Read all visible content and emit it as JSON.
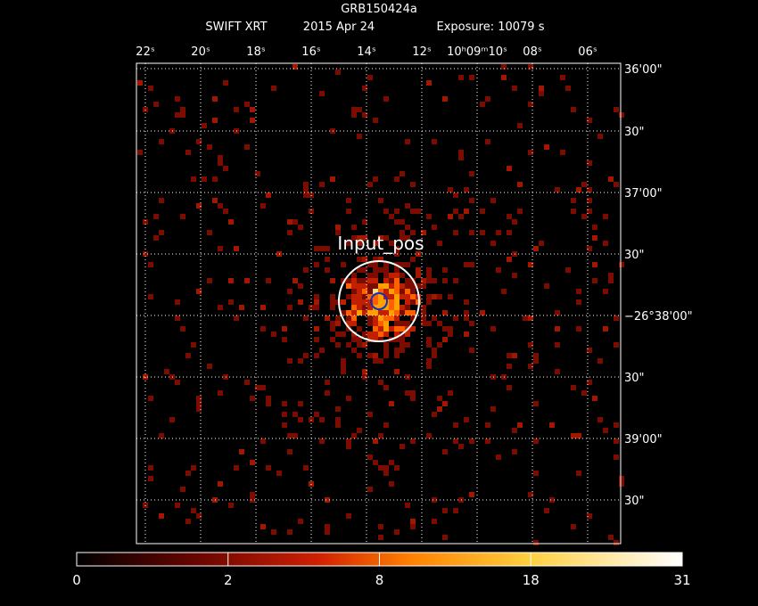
{
  "header": {
    "title": "GRB150424a",
    "instrument": "SWIFT XRT",
    "date": "2015 Apr 24",
    "exposure": "Exposure: 10079 s"
  },
  "image": {
    "top_labels": [
      "22ˢ",
      "20ˢ",
      "18ˢ",
      "16ˢ",
      "14ˢ",
      "12ˢ",
      "10ʰ09ᵐ10ˢ",
      "08ˢ",
      "06ˢ"
    ],
    "right_labels": [
      "36'00\"",
      "30\"",
      "37'00\"",
      "30\"",
      "−26°38'00\"",
      "30\"",
      "39'00\"",
      "30\""
    ],
    "marker_label": "Input_pos"
  },
  "colorbar": {
    "ticks": [
      0,
      2,
      8,
      18,
      31
    ]
  }
}
